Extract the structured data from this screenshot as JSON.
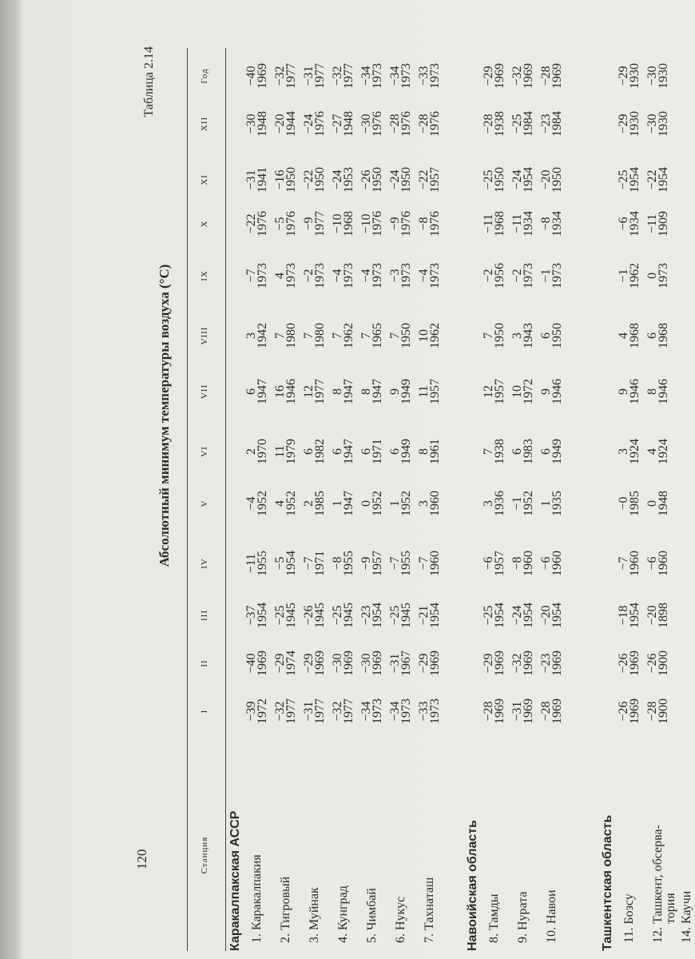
{
  "page_number": "120",
  "table_label": "Таблица 2.14",
  "title": "Абсолютный минимум температуры воздуха (°C)",
  "table": {
    "columns": [
      "Станция",
      "I",
      "II",
      "III",
      "IV",
      "V",
      "VI",
      "VII",
      "VIII",
      "IX",
      "X",
      "XI",
      "XII",
      "Год"
    ],
    "groups": [
      {
        "name": "Каракалпакская АССР",
        "rows": [
          {
            "station": "1. Каракалпакия",
            "values": [
              "−39",
              "−40",
              "−37",
              "−11",
              "−4",
              "2",
              "6",
              "3",
              "−7",
              "−22",
              "−31",
              "−30",
              "−40"
            ],
            "years": [
              "1972",
              "1969",
              "1954",
              "1955",
              "1952",
              "1970",
              "1947",
              "1942",
              "1973",
              "1976",
              "1941",
              "1948",
              "1969"
            ]
          },
          {
            "station": "2. Тигровый",
            "values": [
              "−32",
              "−29",
              "−25",
              "−5",
              "4",
              "11",
              "16",
              "7",
              "4",
              "−5",
              "−16",
              "−20",
              "−32"
            ],
            "years": [
              "1977",
              "1974",
              "1945",
              "1954",
              "1952",
              "1979",
              "1946",
              "1980",
              "1973",
              "1976",
              "1950",
              "1944",
              "1977"
            ]
          },
          {
            "station": "3. Муйнак",
            "values": [
              "−31",
              "−29",
              "−26",
              "−7",
              "2",
              "6",
              "12",
              "7",
              "−2",
              "−9",
              "−22",
              "−24",
              "−31"
            ],
            "years": [
              "1977",
              "1969",
              "1945",
              "1971",
              "1985",
              "1982",
              "1977",
              "1980",
              "1973",
              "1977",
              "1950",
              "1976",
              "1977"
            ]
          },
          {
            "station": "4. Кунград",
            "values": [
              "−32",
              "−30",
              "−25",
              "−8",
              "1",
              "6",
              "8",
              "7",
              "−4",
              "−10",
              "−24",
              "−27",
              "−32"
            ],
            "years": [
              "1977",
              "1969",
              "1945",
              "1955",
              "1947",
              "1947",
              "1947",
              "1962",
              "1973",
              "1968",
              "1953",
              "1948",
              "1977"
            ]
          },
          {
            "station": "5. Чимбай",
            "values": [
              "−34",
              "−30",
              "−23",
              "−9",
              "0",
              "6",
              "8",
              "7",
              "−4",
              "−10",
              "−26",
              "−30",
              "−34"
            ],
            "years": [
              "1973",
              "1969",
              "1954",
              "1957",
              "1952",
              "1971",
              "1947",
              "1965",
              "1973",
              "1976",
              "1950",
              "1976",
              "1973"
            ]
          },
          {
            "station": "6. Нукус",
            "values": [
              "−34",
              "−31",
              "−25",
              "−7",
              "1",
              "6",
              "9",
              "7",
              "−3",
              "−9",
              "−24",
              "−28",
              "−34"
            ],
            "years": [
              "1973",
              "1967",
              "1945",
              "1955",
              "1952",
              "1949",
              "1949",
              "1950",
              "1973",
              "1976",
              "1950",
              "1976",
              "1973"
            ]
          },
          {
            "station": "7. Тахнаташ",
            "values": [
              "−33",
              "−29",
              "−21",
              "−7",
              "3",
              "8",
              "11",
              "10",
              "−4",
              "−8",
              "−22",
              "−28",
              "−33"
            ],
            "years": [
              "1973",
              "1969",
              "1954",
              "1960",
              "1960",
              "1961",
              "1957",
              "1962",
              "1973",
              "1976",
              "1957",
              "1976",
              "1973"
            ]
          }
        ]
      },
      {
        "name": "Навоийская область",
        "rows": [
          {
            "station": "8. Тамды",
            "values": [
              "−28",
              "−29",
              "−25",
              "−6",
              "3",
              "7",
              "12",
              "7",
              "−2",
              "−11",
              "−25",
              "−28",
              "−29"
            ],
            "years": [
              "1969",
              "1969",
              "1954",
              "1957",
              "1936",
              "1938",
              "1957",
              "1950",
              "1956",
              "1968",
              "1950",
              "1938",
              "1969"
            ]
          },
          {
            "station": "9. Нурата",
            "values": [
              "−31",
              "−32",
              "−24",
              "−8",
              "−1",
              "6",
              "10",
              "3",
              "−2",
              "−11",
              "−24",
              "−25",
              "−32"
            ],
            "years": [
              "1969",
              "1969",
              "1954",
              "1960",
              "1952",
              "1983",
              "1972",
              "1943",
              "1973",
              "1934",
              "1954",
              "1984",
              "1969"
            ]
          },
          {
            "station": "10. Навои",
            "values": [
              "−28",
              "−23",
              "−20",
              "−6",
              "1",
              "6",
              "9",
              "6",
              "−1",
              "−8",
              "−20",
              "−23",
              "−28"
            ],
            "years": [
              "1969",
              "1969",
              "1954",
              "1960",
              "1935",
              "1949",
              "1946",
              "1950",
              "1973",
              "1934",
              "1950",
              "1984",
              "1969"
            ]
          }
        ]
      },
      {
        "name": "Ташкентская область",
        "rows": [
          {
            "station": "11. Бозсу",
            "values": [
              "−26",
              "−26",
              "−18",
              "−7",
              "−0",
              "3",
              "9",
              "4",
              "−1",
              "−6",
              "−25",
              "−29",
              "−29"
            ],
            "years": [
              "1969",
              "1969",
              "1954",
              "1960",
              "1985",
              "1924",
              "1946",
              "1968",
              "1962",
              "1934",
              "1954",
              "1930",
              "1930"
            ]
          },
          {
            "station": "12. Ташкент, обсерва-",
            "station_cont": "тория",
            "values": [
              "−28",
              "−26",
              "−20",
              "−6",
              "0",
              "4",
              "8",
              "6",
              "0",
              "−11",
              "−22",
              "−30",
              "−30"
            ],
            "years": [
              "1900",
              "1900",
              "1898",
              "1960",
              "1948",
              "1924",
              "1946",
              "1968",
              "1973",
              "1909",
              "1954",
              "1930",
              "1930"
            ]
          },
          {
            "station": "14. Каучи"
          }
        ]
      }
    ]
  }
}
